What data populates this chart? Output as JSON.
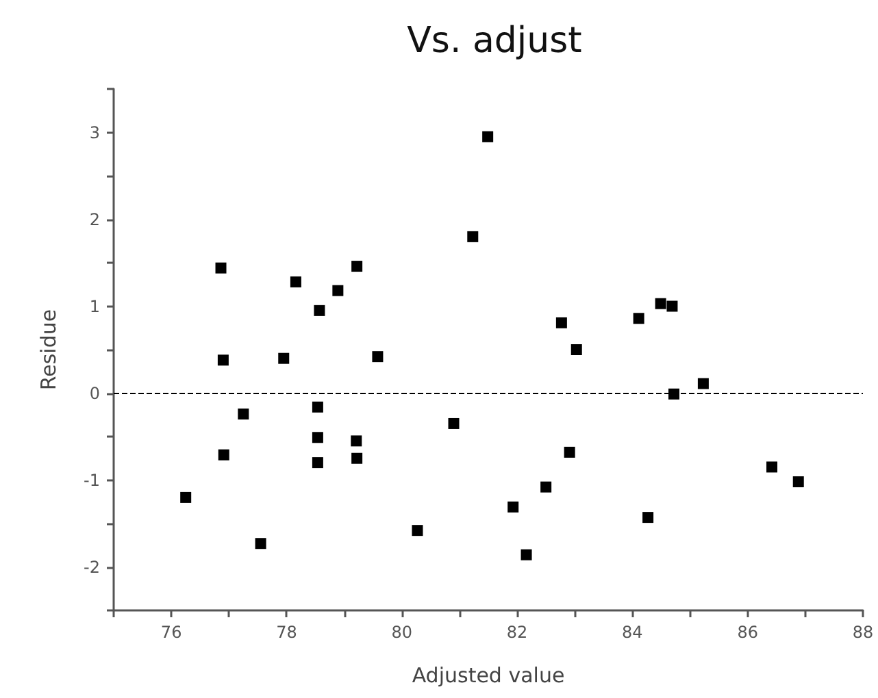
{
  "chart_data": {
    "type": "scatter",
    "title": "Vs. adjust",
    "xlabel": "Adjusted value",
    "ylabel": "Residue",
    "marker": "square",
    "xlim": [
      75,
      88
    ],
    "xticks": [
      {
        "value": 75,
        "label": null
      },
      76,
      {
        "value": 77,
        "label": null
      },
      78,
      {
        "value": 79,
        "label": null
      },
      80,
      {
        "value": 81,
        "label": null
      },
      82,
      {
        "value": 83,
        "label": null
      },
      84,
      {
        "value": 85,
        "label": null
      },
      86,
      {
        "value": 87,
        "label": null
      },
      88
    ],
    "ylim": [
      -2.5,
      3.5
    ],
    "yticks": [
      {
        "value": -2.5,
        "label": null
      },
      -2,
      {
        "value": -1.5,
        "label": null
      },
      -1,
      {
        "value": -0.5,
        "label": null
      },
      0,
      {
        "value": 0.5,
        "label": null
      },
      1,
      {
        "value": 1.5,
        "label": null
      },
      2,
      {
        "value": 2.5,
        "label": null
      },
      3,
      {
        "value": 3.5,
        "label": null
      }
    ],
    "ref_lines": [
      {
        "axis": "y",
        "value": 0,
        "line_style": "dashed",
        "color": "#000000"
      }
    ],
    "series": [
      {
        "color": "#000000",
        "x": [
          76.86,
          76.9,
          77.95,
          78.16,
          78.57,
          78.89,
          79.22,
          79.58,
          81.23,
          81.49,
          82.77,
          83.03,
          84.11,
          84.49,
          84.69,
          84.72,
          85.23,
          76.25,
          76.91,
          77.25,
          77.55,
          78.54,
          78.54,
          78.54,
          79.21,
          79.22,
          80.27,
          80.9,
          81.93,
          82.16,
          82.5,
          82.91,
          84.27,
          86.42,
          86.88
        ],
        "values": [
          1.44,
          0.38,
          0.4,
          1.28,
          0.95,
          1.18,
          1.46,
          0.42,
          1.8,
          2.95,
          0.81,
          0.5,
          0.86,
          1.03,
          1.0,
          -0.01,
          0.11,
          -1.2,
          -0.71,
          -0.24,
          -1.73,
          -0.16,
          -0.51,
          -0.8,
          -0.55,
          -0.75,
          -1.58,
          -0.35,
          -1.31,
          -1.86,
          -1.08,
          -0.68,
          -1.43,
          -0.85,
          -1.02
        ]
      }
    ]
  }
}
